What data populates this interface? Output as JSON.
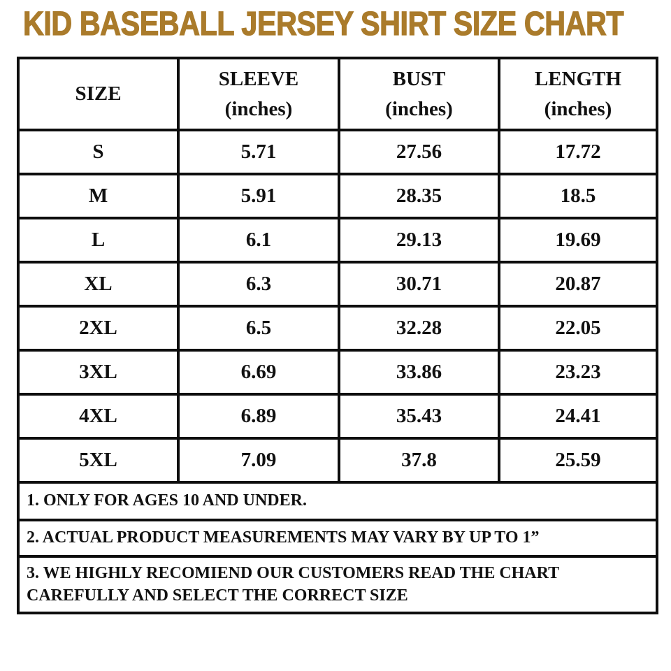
{
  "title": "KID BASEBALL JERSEY SHIRT SIZE CHART",
  "colors": {
    "title_accent": "#AA7B2B",
    "border": "#0d0d0d",
    "background": "#ffffff",
    "text": "#111111"
  },
  "table": {
    "headers": [
      {
        "label": "SIZE",
        "unit": ""
      },
      {
        "label": "SLEEVE",
        "unit": "(inches)"
      },
      {
        "label": "BUST",
        "unit": "(inches)"
      },
      {
        "label": "LENGTH",
        "unit": "(inches)"
      }
    ],
    "rows": [
      {
        "size": "S",
        "sleeve": "5.71",
        "bust": "27.56",
        "length": "17.72"
      },
      {
        "size": "M",
        "sleeve": "5.91",
        "bust": "28.35",
        "length": "18.5"
      },
      {
        "size": "L",
        "sleeve": "6.1",
        "bust": "29.13",
        "length": "19.69"
      },
      {
        "size": "XL",
        "sleeve": "6.3",
        "bust": "30.71",
        "length": "20.87"
      },
      {
        "size": "2XL",
        "sleeve": "6.5",
        "bust": "32.28",
        "length": "22.05"
      },
      {
        "size": "3XL",
        "sleeve": "6.69",
        "bust": "33.86",
        "length": "23.23"
      },
      {
        "size": "4XL",
        "sleeve": "6.89",
        "bust": "35.43",
        "length": "24.41"
      },
      {
        "size": "5XL",
        "sleeve": "7.09",
        "bust": "37.8",
        "length": "25.59"
      }
    ]
  },
  "notes": [
    {
      "text": "1. ONLY FOR AGES 10 AND UNDER."
    },
    {
      "text": "2. ACTUAL PRODUCT MEASUREMENTS MAY VARY BY UP TO 1”"
    },
    {
      "text": "3. WE HIGHLY RECOMIEND OUR CUSTOMERS READ THE CHART CAREFULLY AND SELECT THE CORRECT SIZE"
    }
  ]
}
